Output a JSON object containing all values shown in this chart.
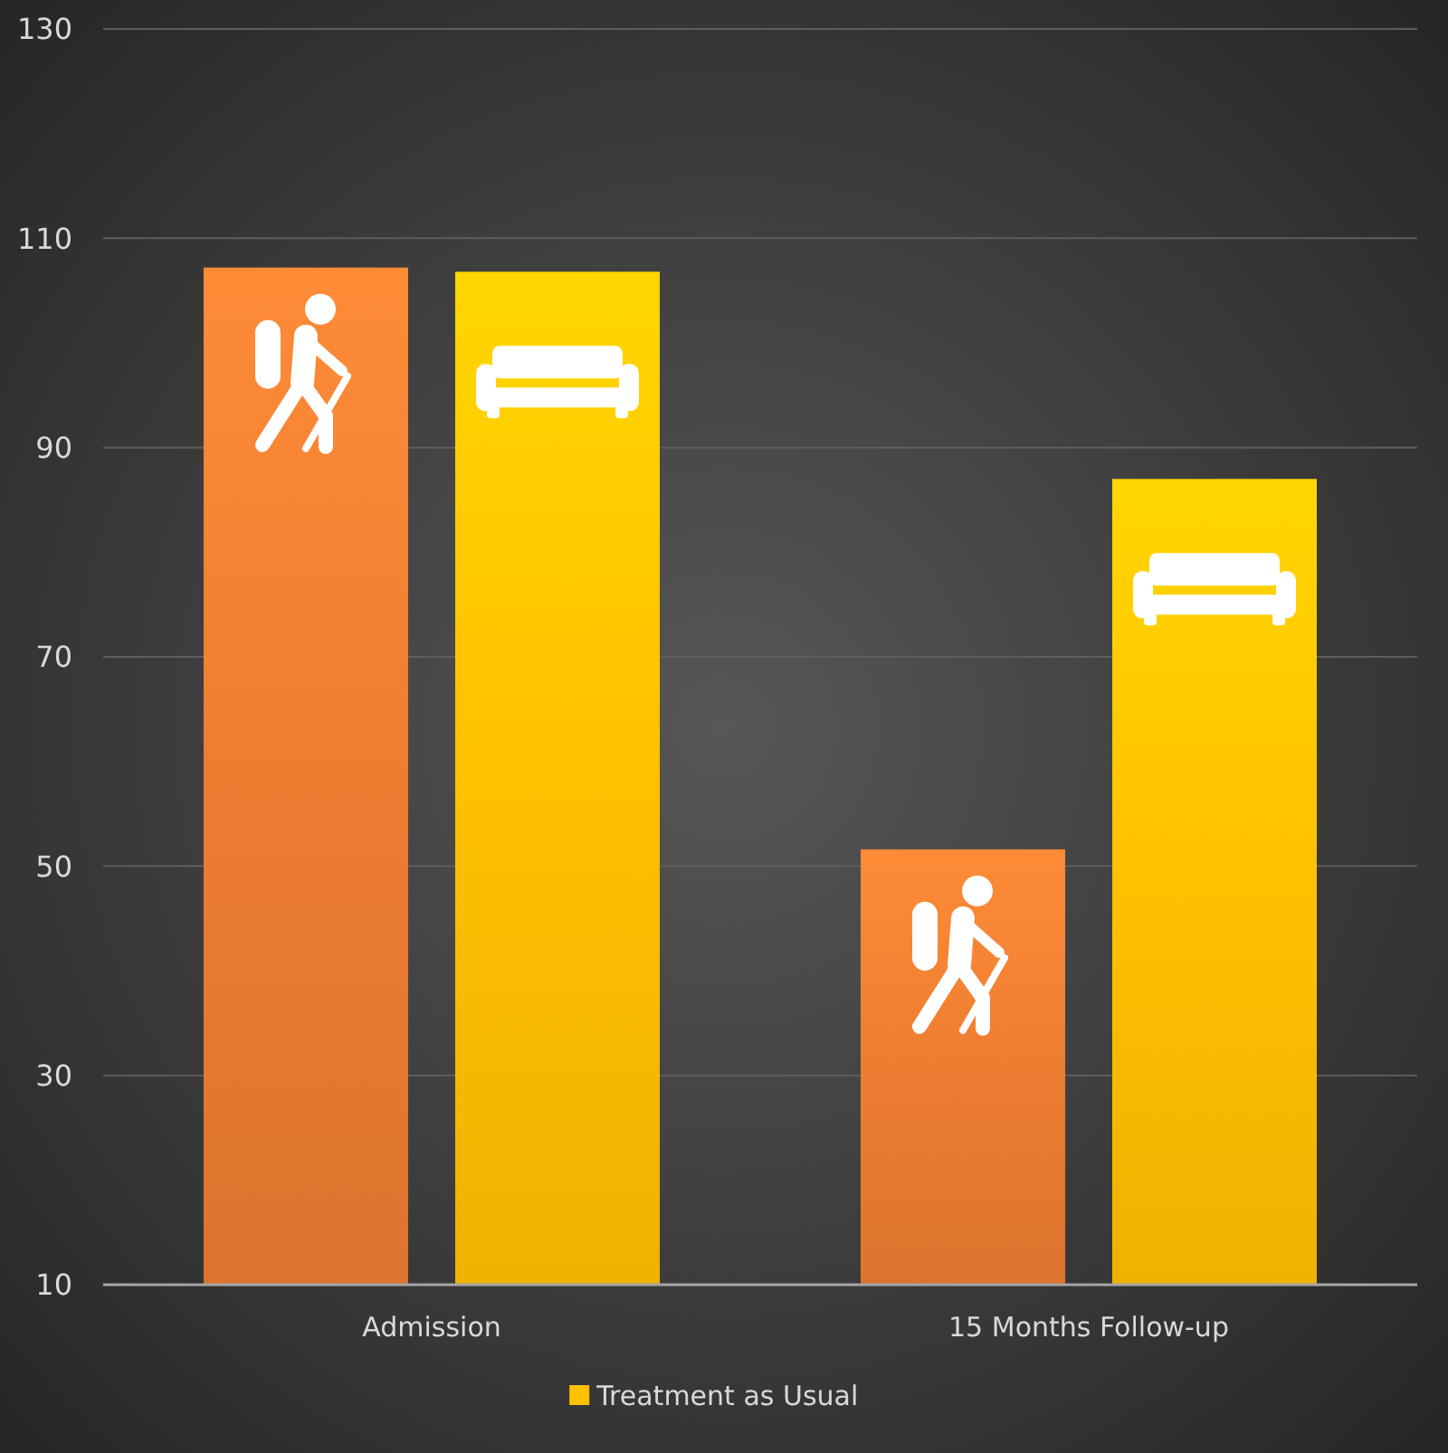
{
  "chart_data": {
    "type": "bar",
    "categories": [
      "Admission",
      "15 Months Follow-up"
    ],
    "series": [
      {
        "color": "#ed7d31",
        "values": [
          107.2,
          51.6
        ]
      },
      {
        "name": "Treatment as Usual",
        "color": "#ffc000",
        "values": [
          106.8,
          87
        ]
      }
    ],
    "ylim": [
      10,
      130
    ],
    "yticks": [
      10,
      30,
      50,
      70,
      90,
      110,
      130
    ],
    "grid": "y",
    "legend": "bottom"
  }
}
